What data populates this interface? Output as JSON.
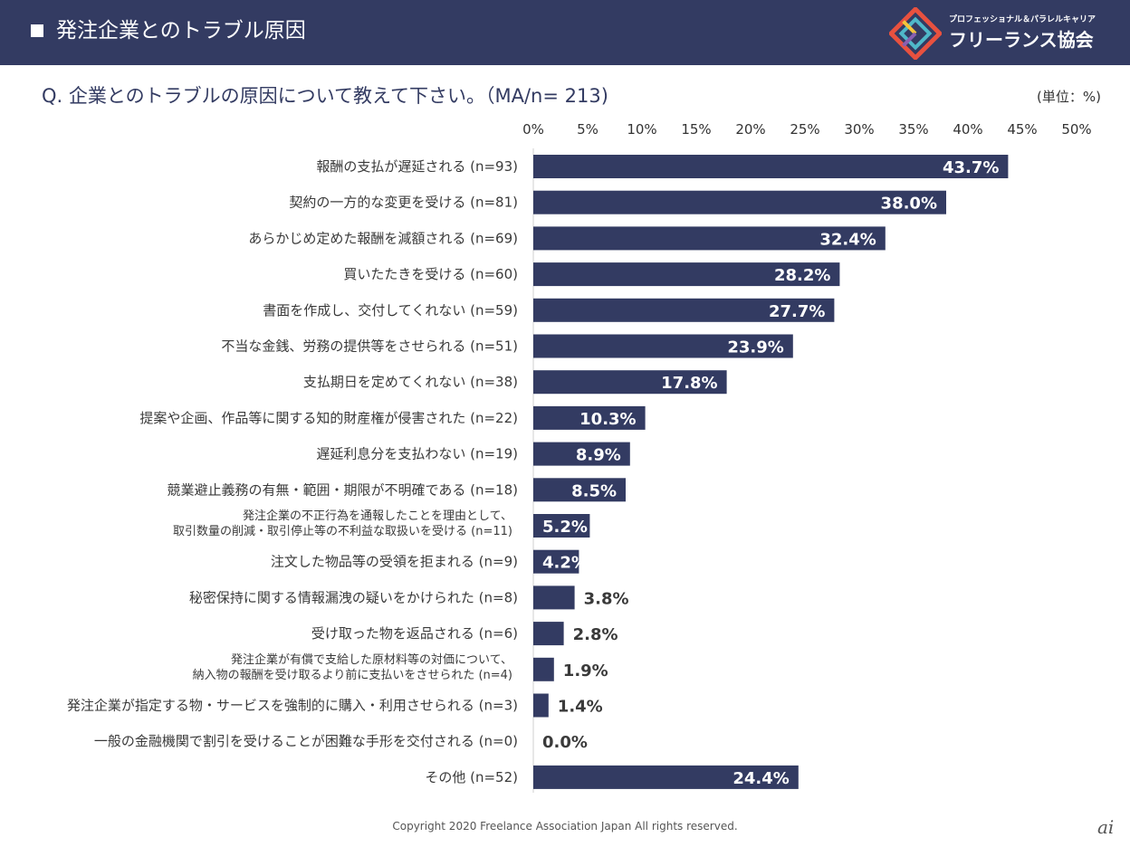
{
  "header": {
    "title": "発注企業とのトラブル原因",
    "logo_tagline": "プロフェッショナル＆パラレルキャリア",
    "logo_name": "フリーランス協会",
    "logo_colors": [
      "#e8513f",
      "#f5c33b",
      "#4fb8c9",
      "#8a5fb0"
    ]
  },
  "question": "Q.  企業とのトラブルの原因について教えて下さい。（MA/n= 213)",
  "unit_label": "(単位：%)",
  "footer": "Copyright 2020 Freelance Association Japan  All rights reserved.",
  "corner_mark": "ai",
  "chart_data": {
    "type": "bar",
    "orientation": "horizontal",
    "bar_color": "#333b62",
    "xlim": [
      0,
      50
    ],
    "x_ticks": [
      "0%",
      "5%",
      "10%",
      "15%",
      "20%",
      "25%",
      "30%",
      "35%",
      "40%",
      "45%",
      "50%"
    ],
    "grid": false,
    "categories": [
      [
        "報酬の支払が遅延される (n=93)"
      ],
      [
        "契約の一方的な変更を受ける (n=81)"
      ],
      [
        "あらかじめ定めた報酬を減額される (n=69)"
      ],
      [
        "買いたたきを受ける (n=60)"
      ],
      [
        "書面を作成し、交付してくれない (n=59)"
      ],
      [
        "不当な金銭、労務の提供等をさせられる (n=51)"
      ],
      [
        "支払期日を定めてくれない (n=38)"
      ],
      [
        "提案や企画、作品等に関する知的財産権が侵害された (n=22)"
      ],
      [
        "遅延利息分を支払わない (n=19)"
      ],
      [
        "競業避止義務の有無・範囲・期限が不明確である (n=18)"
      ],
      [
        "発注企業の不正行為を通報したことを理由として、",
        "取引数量の削減・取引停止等の不利益な取扱いを受ける (n=11)"
      ],
      [
        "注文した物品等の受領を拒まれる (n=9)"
      ],
      [
        "秘密保持に関する情報漏洩の疑いをかけられた (n=8)"
      ],
      [
        "受け取った物を返品される (n=6)"
      ],
      [
        "発注企業が有償で支給した原材料等の対価について、",
        "納入物の報酬を受け取るより前に支払いをさせられた (n=4)"
      ],
      [
        "発注企業が指定する物・サービスを強制的に購入・利用させられる (n=3)"
      ],
      [
        "一般の金融機関で割引を受けることが困難な手形を交付される (n=0)"
      ],
      [
        "その他 (n=52)"
      ]
    ],
    "values": [
      43.7,
      38.0,
      32.4,
      28.2,
      27.7,
      23.9,
      17.8,
      10.3,
      8.9,
      8.5,
      5.2,
      4.2,
      3.8,
      2.8,
      1.9,
      1.4,
      0.0,
      24.4
    ],
    "value_labels": [
      "43.7%",
      "38.0%",
      "32.4%",
      "28.2%",
      "27.7%",
      "23.9%",
      "17.8%",
      "10.3%",
      "8.9%",
      "8.5%",
      "5.2%",
      "4.2%",
      "3.8%",
      "2.8%",
      "1.9%",
      "1.4%",
      "0.0%",
      "24.4%"
    ]
  }
}
